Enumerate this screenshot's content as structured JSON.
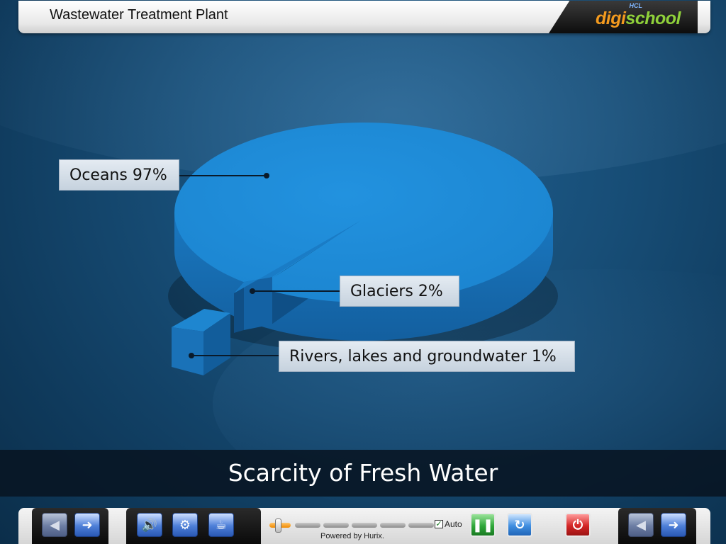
{
  "header": {
    "title": "Wastewater Treatment Plant",
    "logo": {
      "brand": "HCL",
      "name_part1": "digi",
      "name_part2": "school"
    }
  },
  "chart_data": {
    "type": "pie",
    "style": "3d-exploded",
    "slices": [
      {
        "label": "Oceans 97%",
        "name": "Oceans",
        "value": 97
      },
      {
        "label": "Glaciers 2%",
        "name": "Glaciers",
        "value": 2
      },
      {
        "label": "Rivers, lakes and groundwater 1%",
        "name": "Rivers, lakes and groundwater",
        "value": 1
      }
    ],
    "colors": {
      "top": "#1e8ad6",
      "side": "#1569ad",
      "dark": "#0f4f86"
    }
  },
  "banner": {
    "text": "Scarcity of Fresh Water"
  },
  "toolbar": {
    "buttons": [
      "back-icon",
      "forward-icon",
      "speaker-icon",
      "settings-icon",
      "toolkit-icon",
      "pause-icon",
      "replay-icon",
      "power-icon",
      "previous-icon",
      "next-icon"
    ],
    "progress_fraction": 0.05,
    "progress_segments": 6,
    "auto_label": "Auto",
    "auto_checked": true,
    "powered_by": "Powered by Hurix."
  }
}
